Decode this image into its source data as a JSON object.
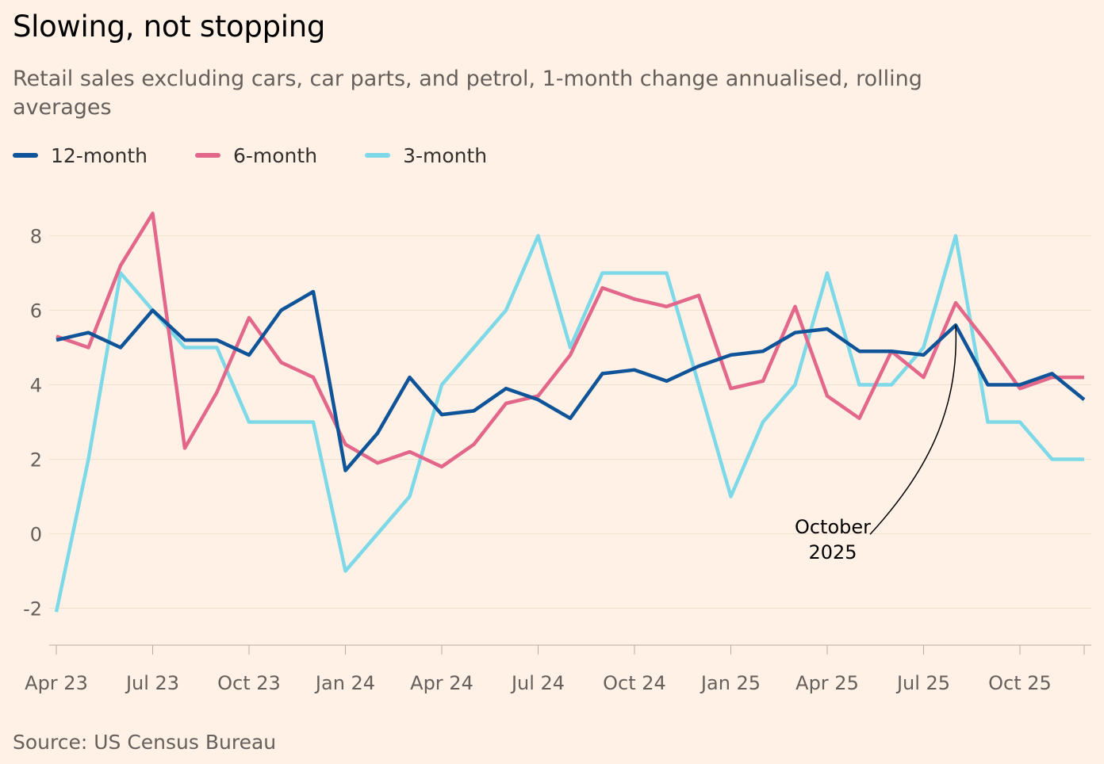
{
  "title": "Slowing, not stopping",
  "subtitle": "Retail sales excluding cars, car parts, and petrol, 1-month change annualised, rolling averages",
  "source": "Source: US Census Bureau",
  "chart_data": {
    "type": "line",
    "title": "Slowing, not stopping",
    "subtitle": "Retail sales excluding cars, car parts, and petrol, 1-month change annualised, rolling averages",
    "xlabel": "",
    "ylabel": "",
    "x": [
      "Apr 23",
      "May 23",
      "Jun 23",
      "Jul 23",
      "Aug 23",
      "Sep 23",
      "Oct 23",
      "Nov 23",
      "Dec 23",
      "Jan 24",
      "Feb 24",
      "Mar 24",
      "Apr 24",
      "May 24",
      "Jun 24",
      "Jul 24",
      "Aug 24",
      "Sep 24",
      "Oct 24",
      "Nov 24",
      "Dec 24",
      "Jan 25",
      "Feb 25",
      "Mar 25",
      "Apr 25",
      "May 25",
      "Jun 25",
      "Jul 25",
      "Aug 25",
      "Sep 25",
      "Oct 25",
      "Nov 25",
      "Dec 25"
    ],
    "x_tick_labels": [
      "Apr 23",
      "Jul 23",
      "Oct 23",
      "Jan 24",
      "Apr 24",
      "Jul 24",
      "Oct 24",
      "Jan 25",
      "Apr 25",
      "Jul 25",
      "Oct 25"
    ],
    "y_ticks": [
      "8",
      "6",
      "4",
      "2",
      "0",
      "-2"
    ],
    "y_tick_values": [
      8,
      6,
      4,
      2,
      0,
      -2
    ],
    "ylim": [
      -3,
      9
    ],
    "grid": true,
    "legend_position": "top-left",
    "series": [
      {
        "name": "12-month",
        "color": "#0f5499",
        "values": [
          5.2,
          5.4,
          5.0,
          6.0,
          5.2,
          5.2,
          4.8,
          6.0,
          6.5,
          1.7,
          2.7,
          4.2,
          3.2,
          3.3,
          3.9,
          3.6,
          3.1,
          4.3,
          4.4,
          4.1,
          4.5,
          4.8,
          4.9,
          5.4,
          5.5,
          4.9,
          4.9,
          4.8,
          5.6,
          4.0,
          4.0,
          4.3,
          3.6
        ]
      },
      {
        "name": "6-month",
        "color": "#e3678a",
        "values": [
          5.3,
          5.0,
          7.2,
          8.6,
          2.3,
          3.8,
          5.8,
          4.6,
          4.2,
          2.4,
          1.9,
          2.2,
          1.8,
          2.4,
          3.5,
          3.7,
          4.8,
          6.6,
          6.3,
          6.1,
          6.4,
          3.9,
          4.1,
          6.1,
          3.7,
          3.1,
          4.9,
          4.2,
          6.2,
          5.1,
          3.9,
          4.2,
          4.2
        ]
      },
      {
        "name": "3-month",
        "color": "#7dd8e8",
        "values": [
          -2.1,
          2.0,
          7.0,
          6.0,
          5.0,
          5.0,
          3.0,
          3.0,
          3.0,
          -1.0,
          0.0,
          1.0,
          4.0,
          5.0,
          6.0,
          8.0,
          5.0,
          7.0,
          7.0,
          7.0,
          4.0,
          1.0,
          3.0,
          4.0,
          7.0,
          4.0,
          4.0,
          5.0,
          8.0,
          3.0,
          3.0,
          2.0,
          2.0
        ]
      }
    ],
    "annotations": [
      {
        "text_line1": "October",
        "text_line2": "2025",
        "target_x": "Aug 25",
        "target_series": "12-month",
        "target_value": 5.6
      }
    ]
  }
}
